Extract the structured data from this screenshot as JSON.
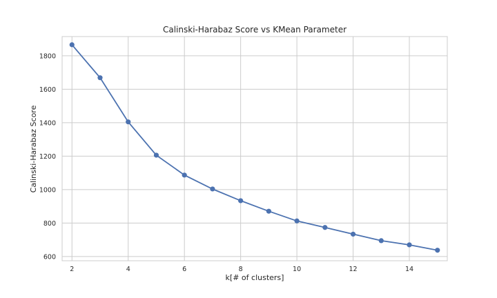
{
  "chart_data": {
    "type": "line",
    "title": "Calinski-Harabaz Score vs KMean Parameter",
    "xlabel": "k[# of clusters]",
    "ylabel": "Calinski-Harabaz Score",
    "xlim": [
      1.65,
      15.35
    ],
    "ylim": [
      575,
      1915
    ],
    "xticks": [
      2,
      4,
      6,
      8,
      10,
      12,
      14
    ],
    "yticks": [
      600,
      800,
      1000,
      1200,
      1400,
      1600,
      1800
    ],
    "grid": true,
    "legend": "none",
    "color": "#4c72b0",
    "x": [
      2,
      3,
      4,
      5,
      6,
      7,
      8,
      9,
      10,
      11,
      12,
      13,
      14,
      15
    ],
    "y": [
      1866,
      1669,
      1405,
      1206,
      1087,
      1004,
      934,
      871,
      813,
      774,
      734,
      695,
      670,
      638
    ]
  }
}
